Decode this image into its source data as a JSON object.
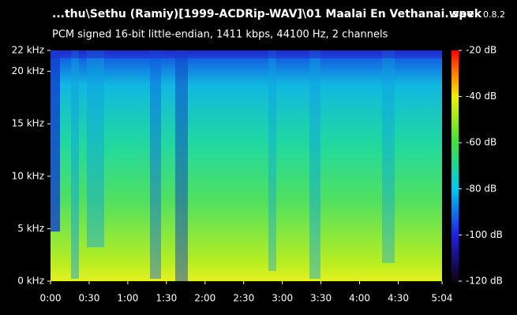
{
  "chart_data": {
    "type": "spectrogram",
    "title": "...thu\\Sethu (Ramiy)[1999-ACDRip-WAV]\\01 Maalai En Vethanai.wav",
    "subtitle": "PCM signed 16-bit little-endian, 1411 kbps, 44100 Hz, 2 channels",
    "app_name": "spek",
    "app_version": "0.8.2",
    "xlim": [
      0,
      304
    ],
    "xticks": [
      {
        "value": 0,
        "label": "0:00"
      },
      {
        "value": 30,
        "label": "0:30"
      },
      {
        "value": 60,
        "label": "1:00"
      },
      {
        "value": 90,
        "label": "1:30"
      },
      {
        "value": 120,
        "label": "2:00"
      },
      {
        "value": 150,
        "label": "2:30"
      },
      {
        "value": 180,
        "label": "3:00"
      },
      {
        "value": 210,
        "label": "3:30"
      },
      {
        "value": 240,
        "label": "4:00"
      },
      {
        "value": 270,
        "label": "4:30"
      },
      {
        "value": 304,
        "label": "5:04"
      }
    ],
    "ylim": [
      0,
      22
    ],
    "yticks": [
      {
        "value": 0,
        "label": "0 kHz"
      },
      {
        "value": 5,
        "label": "5 kHz"
      },
      {
        "value": 10,
        "label": "10 kHz"
      },
      {
        "value": 15,
        "label": "15 kHz"
      },
      {
        "value": 20,
        "label": "20 kHz"
      },
      {
        "value": 22,
        "label": "22 kHz"
      }
    ],
    "zlim": [
      -120,
      -20
    ],
    "zticks": [
      {
        "value": -20,
        "label": "-20 dB"
      },
      {
        "value": -40,
        "label": "-40 dB"
      },
      {
        "value": -60,
        "label": "-60 dB"
      },
      {
        "value": -80,
        "label": "-80 dB"
      },
      {
        "value": -100,
        "label": "-100 dB"
      },
      {
        "value": -120,
        "label": "-120 dB"
      }
    ]
  }
}
